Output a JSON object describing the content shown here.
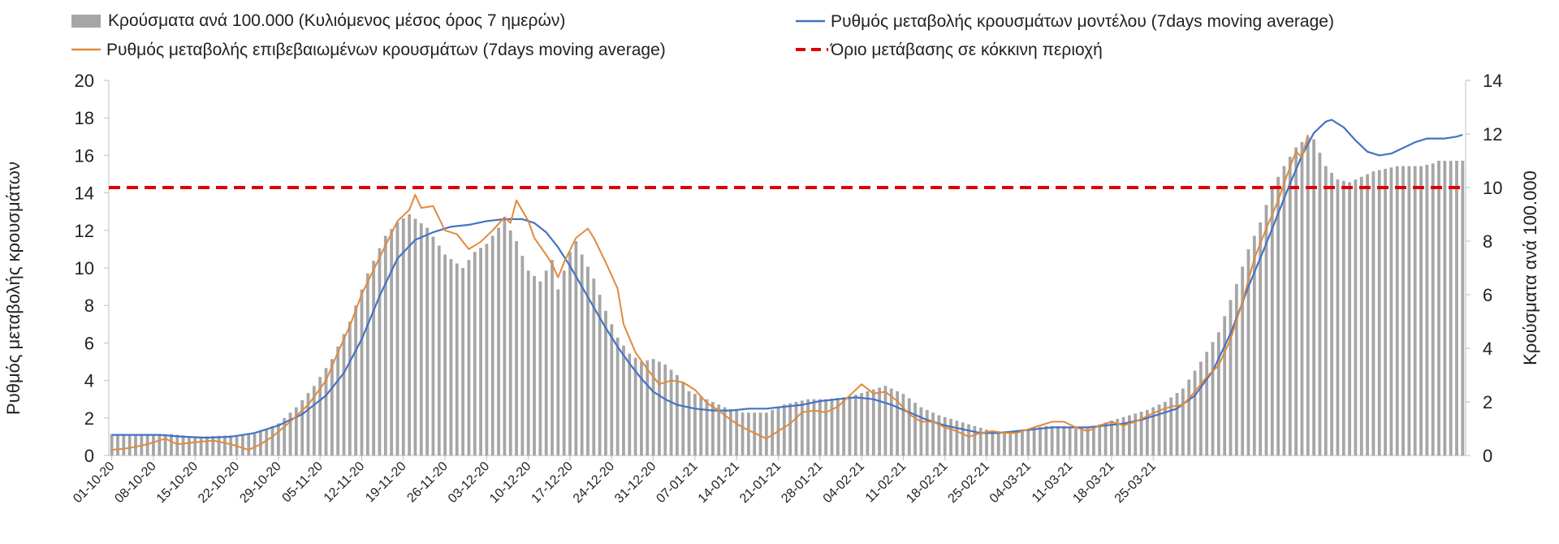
{
  "chart_data": {
    "type": "bar+line",
    "legend": {
      "bars": "Κρούσματα ανά 100.000 (Κυλιόμενος μέσος όρος 7 ημερών)",
      "model": "Ρυθμός μεταβολής κρουσμάτων μοντέλου (7days moving average)",
      "confirmed": "Ρυθμός μεταβολής επιβεβαιωμένων κρουσμάτων (7days moving average)",
      "threshold": "Όριο μετάβασης σε κόκκινη περιοχή"
    },
    "ylabel_left": "Ρυθμός μεταβολής κρουσμάτων",
    "ylabel_right": "Κρούσματα ανά 100.000",
    "ylim_left": [
      0,
      20
    ],
    "ylim_right": [
      0,
      14
    ],
    "yticks_left": [
      "0",
      "2",
      "4",
      "6",
      "8",
      "10",
      "12",
      "14",
      "16",
      "18",
      "20"
    ],
    "yticks_right": [
      "0",
      "2",
      "4",
      "6",
      "8",
      "10",
      "12",
      "14"
    ],
    "x_tick_labels": [
      "01-10-20",
      "08-10-20",
      "15-10-20",
      "22-10-20",
      "29-10-20",
      "05-11-20",
      "12-11-20",
      "19-11-20",
      "26-11-20",
      "03-12-20",
      "10-12-20",
      "17-12-20",
      "24-12-20",
      "31-12-20",
      "07-01-21",
      "14-01-21",
      "21-01-21",
      "28-01-21",
      "04-02-21",
      "11-02-21",
      "18-02-21",
      "25-02-21",
      "04-03-21",
      "11-03-21",
      "18-03-21",
      "25-03-21"
    ],
    "threshold_right_axis": 10,
    "series": [
      {
        "name": "Κρούσματα ανά 100.000 (Κυλιόμενος μέσος όρος 7 ημερών)",
        "axis": "right",
        "kind": "bar",
        "color": "#a6a6a6",
        "keypoints": [
          [
            0,
            0.8
          ],
          [
            10,
            0.8
          ],
          [
            14,
            0.7
          ],
          [
            20,
            0.75
          ],
          [
            24,
            0.8
          ],
          [
            28,
            1.2
          ],
          [
            31,
            1.8
          ],
          [
            34,
            2.6
          ],
          [
            37,
            3.6
          ],
          [
            40,
            5.0
          ],
          [
            43,
            6.8
          ],
          [
            46,
            8.2
          ],
          [
            48,
            8.7
          ],
          [
            50,
            9.0
          ],
          [
            53,
            8.5
          ],
          [
            56,
            7.5
          ],
          [
            59,
            7.0
          ],
          [
            61,
            7.6
          ],
          [
            63,
            7.9
          ],
          [
            65,
            8.5
          ],
          [
            66,
            8.8
          ],
          [
            68,
            8.0
          ],
          [
            70,
            6.9
          ],
          [
            72,
            6.5
          ],
          [
            74,
            7.3
          ],
          [
            75,
            6.2
          ],
          [
            77,
            7.6
          ],
          [
            78,
            8.0
          ],
          [
            79,
            7.5
          ],
          [
            81,
            6.6
          ],
          [
            83,
            5.4
          ],
          [
            85,
            4.4
          ],
          [
            87,
            3.8
          ],
          [
            89,
            3.5
          ],
          [
            91,
            3.6
          ],
          [
            93,
            3.4
          ],
          [
            95,
            3.0
          ],
          [
            97,
            2.4
          ],
          [
            100,
            2.1
          ],
          [
            103,
            1.8
          ],
          [
            106,
            1.6
          ],
          [
            110,
            1.6
          ],
          [
            113,
            1.9
          ],
          [
            115,
            2.0
          ],
          [
            117,
            2.1
          ],
          [
            120,
            2.1
          ],
          [
            124,
            2.2
          ],
          [
            127,
            2.4
          ],
          [
            130,
            2.6
          ],
          [
            133,
            2.3
          ],
          [
            136,
            1.8
          ],
          [
            139,
            1.5
          ],
          [
            142,
            1.3
          ],
          [
            145,
            1.1
          ],
          [
            148,
            0.9
          ],
          [
            151,
            0.9
          ],
          [
            154,
            1.0
          ],
          [
            157,
            1.1
          ],
          [
            160,
            1.1
          ],
          [
            162,
            1.0
          ],
          [
            165,
            1.1
          ],
          [
            168,
            1.3
          ],
          [
            171,
            1.5
          ],
          [
            174,
            1.7
          ],
          [
            177,
            2.0
          ],
          [
            180,
            2.5
          ],
          [
            183,
            3.5
          ],
          [
            186,
            4.6
          ],
          [
            189,
            6.4
          ],
          [
            191,
            7.7
          ],
          [
            193,
            8.7
          ],
          [
            195,
            10.0
          ],
          [
            197,
            10.8
          ],
          [
            199,
            11.5
          ],
          [
            201,
            11.9
          ],
          [
            202,
            11.8
          ],
          [
            204,
            10.8
          ],
          [
            206,
            10.3
          ],
          [
            208,
            10.2
          ],
          [
            210,
            10.4
          ],
          [
            212,
            10.6
          ],
          [
            214,
            10.7
          ],
          [
            216,
            10.8
          ],
          [
            218,
            10.8
          ],
          [
            220,
            10.8
          ],
          [
            222,
            10.9
          ],
          [
            223,
            11.0
          ]
        ]
      },
      {
        "name": "Ρυθμός μεταβολής κρουσμάτων μοντέλου (7days moving average)",
        "axis": "left",
        "kind": "line",
        "color": "#4472c4",
        "keypoints": [
          [
            0,
            1.1
          ],
          [
            8,
            1.1
          ],
          [
            12,
            1.0
          ],
          [
            16,
            0.95
          ],
          [
            20,
            1.0
          ],
          [
            24,
            1.2
          ],
          [
            28,
            1.6
          ],
          [
            32,
            2.2
          ],
          [
            36,
            3.2
          ],
          [
            39,
            4.4
          ],
          [
            42,
            6.2
          ],
          [
            45,
            8.5
          ],
          [
            48,
            10.5
          ],
          [
            51,
            11.5
          ],
          [
            54,
            11.9
          ],
          [
            57,
            12.2
          ],
          [
            60,
            12.3
          ],
          [
            63,
            12.5
          ],
          [
            66,
            12.6
          ],
          [
            69,
            12.6
          ],
          [
            71,
            12.4
          ],
          [
            73,
            11.9
          ],
          [
            75,
            11.1
          ],
          [
            77,
            10.1
          ],
          [
            79,
            9.0
          ],
          [
            81,
            7.9
          ],
          [
            83,
            6.8
          ],
          [
            85,
            5.8
          ],
          [
            87,
            4.9
          ],
          [
            89,
            4.1
          ],
          [
            91,
            3.4
          ],
          [
            93,
            3.0
          ],
          [
            95,
            2.7
          ],
          [
            98,
            2.5
          ],
          [
            101,
            2.4
          ],
          [
            104,
            2.4
          ],
          [
            107,
            2.5
          ],
          [
            110,
            2.5
          ],
          [
            113,
            2.6
          ],
          [
            116,
            2.7
          ],
          [
            119,
            2.9
          ],
          [
            122,
            3.0
          ],
          [
            125,
            3.1
          ],
          [
            128,
            3.0
          ],
          [
            131,
            2.7
          ],
          [
            134,
            2.3
          ],
          [
            137,
            1.9
          ],
          [
            140,
            1.6
          ],
          [
            143,
            1.4
          ],
          [
            146,
            1.2
          ],
          [
            149,
            1.2
          ],
          [
            152,
            1.3
          ],
          [
            155,
            1.4
          ],
          [
            158,
            1.5
          ],
          [
            161,
            1.5
          ],
          [
            164,
            1.5
          ],
          [
            167,
            1.6
          ],
          [
            170,
            1.7
          ],
          [
            173,
            1.9
          ],
          [
            176,
            2.2
          ],
          [
            179,
            2.5
          ],
          [
            182,
            3.2
          ],
          [
            185,
            4.5
          ],
          [
            188,
            6.5
          ],
          [
            191,
            9.0
          ],
          [
            194,
            11.3
          ],
          [
            196,
            12.9
          ],
          [
            198,
            14.5
          ],
          [
            200,
            16.0
          ],
          [
            202,
            17.2
          ],
          [
            204,
            17.8
          ],
          [
            205,
            17.9
          ],
          [
            207,
            17.5
          ],
          [
            209,
            16.8
          ],
          [
            211,
            16.2
          ],
          [
            213,
            16.0
          ],
          [
            215,
            16.1
          ],
          [
            217,
            16.4
          ],
          [
            219,
            16.7
          ],
          [
            221,
            16.9
          ],
          [
            224,
            16.9
          ],
          [
            226,
            17.0
          ],
          [
            227,
            17.1
          ]
        ]
      },
      {
        "name": "Ρυθμός μεταβολής επιβεβαιωμένων κρουσμάτων (7days moving average)",
        "axis": "left",
        "kind": "line",
        "color": "#e08a3c",
        "keypoints": [
          [
            0,
            0.3
          ],
          [
            3,
            0.4
          ],
          [
            6,
            0.6
          ],
          [
            9,
            0.9
          ],
          [
            11,
            0.6
          ],
          [
            14,
            0.7
          ],
          [
            17,
            0.8
          ],
          [
            20,
            0.6
          ],
          [
            23,
            0.3
          ],
          [
            25,
            0.6
          ],
          [
            27,
            1.0
          ],
          [
            30,
            1.8
          ],
          [
            33,
            2.7
          ],
          [
            36,
            4.0
          ],
          [
            38,
            5.5
          ],
          [
            40,
            6.9
          ],
          [
            42,
            8.6
          ],
          [
            44,
            9.9
          ],
          [
            46,
            11.2
          ],
          [
            48,
            12.5
          ],
          [
            50,
            13.1
          ],
          [
            51,
            13.9
          ],
          [
            52,
            13.2
          ],
          [
            54,
            13.3
          ],
          [
            56,
            12.0
          ],
          [
            58,
            11.8
          ],
          [
            60,
            11.0
          ],
          [
            62,
            11.4
          ],
          [
            64,
            12.0
          ],
          [
            66,
            12.7
          ],
          [
            67,
            12.4
          ],
          [
            68,
            13.6
          ],
          [
            70,
            12.5
          ],
          [
            71,
            11.6
          ],
          [
            73,
            10.7
          ],
          [
            74,
            10.2
          ],
          [
            75,
            9.5
          ],
          [
            76,
            10.3
          ],
          [
            78,
            11.6
          ],
          [
            80,
            12.1
          ],
          [
            81,
            11.6
          ],
          [
            83,
            10.3
          ],
          [
            85,
            8.9
          ],
          [
            86,
            7.0
          ],
          [
            88,
            5.5
          ],
          [
            90,
            4.6
          ],
          [
            92,
            3.8
          ],
          [
            94,
            4.0
          ],
          [
            96,
            3.9
          ],
          [
            98,
            3.5
          ],
          [
            100,
            2.8
          ],
          [
            102,
            2.4
          ],
          [
            104,
            1.9
          ],
          [
            106,
            1.5
          ],
          [
            108,
            1.2
          ],
          [
            110,
            0.9
          ],
          [
            112,
            1.3
          ],
          [
            114,
            1.7
          ],
          [
            116,
            2.3
          ],
          [
            118,
            2.4
          ],
          [
            120,
            2.3
          ],
          [
            122,
            2.6
          ],
          [
            124,
            3.2
          ],
          [
            126,
            3.8
          ],
          [
            128,
            3.3
          ],
          [
            130,
            3.4
          ],
          [
            132,
            2.9
          ],
          [
            134,
            2.2
          ],
          [
            136,
            1.8
          ],
          [
            138,
            1.8
          ],
          [
            140,
            1.5
          ],
          [
            142,
            1.3
          ],
          [
            144,
            1.0
          ],
          [
            146,
            1.2
          ],
          [
            148,
            1.3
          ],
          [
            150,
            1.2
          ],
          [
            152,
            1.2
          ],
          [
            154,
            1.4
          ],
          [
            156,
            1.6
          ],
          [
            158,
            1.8
          ],
          [
            160,
            1.8
          ],
          [
            162,
            1.5
          ],
          [
            164,
            1.3
          ],
          [
            166,
            1.6
          ],
          [
            168,
            1.8
          ],
          [
            170,
            1.6
          ],
          [
            172,
            1.8
          ],
          [
            174,
            2.1
          ],
          [
            176,
            2.4
          ],
          [
            178,
            2.6
          ],
          [
            180,
            2.7
          ],
          [
            182,
            3.4
          ],
          [
            184,
            4.2
          ],
          [
            186,
            4.8
          ],
          [
            188,
            6.2
          ],
          [
            190,
            8.2
          ],
          [
            192,
            10.5
          ],
          [
            194,
            12.1
          ],
          [
            196,
            13.6
          ],
          [
            198,
            15.4
          ],
          [
            199,
            16.2
          ],
          [
            200,
            15.9
          ],
          [
            201,
            17.1
          ]
        ]
      }
    ]
  }
}
